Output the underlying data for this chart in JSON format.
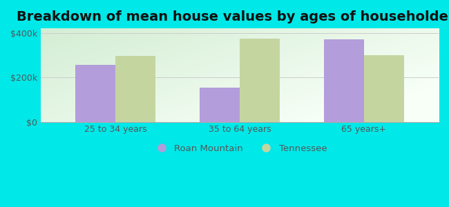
{
  "title": "Breakdown of mean house values by ages of householders",
  "categories": [
    "25 to 34 years",
    "35 to 64 years",
    "65 years+"
  ],
  "roan_mountain": [
    255000,
    155000,
    370000
  ],
  "tennessee": [
    295000,
    375000,
    300000
  ],
  "roan_mountain_color": "#b39ddb",
  "tennessee_color": "#c5d5a0",
  "background_color": "#00e8e8",
  "plot_bg_top_left": "#d4edd4",
  "plot_bg_center": "#f5fdf5",
  "ylabel_ticks": [
    0,
    200000,
    400000
  ],
  "ylabel_labels": [
    "$0",
    "$200k",
    "$400k"
  ],
  "ylim": [
    0,
    420000
  ],
  "legend_roan": "Roan Mountain",
  "legend_tennessee": "Tennessee",
  "title_fontsize": 14,
  "bar_width": 0.32,
  "tick_fontsize": 9
}
